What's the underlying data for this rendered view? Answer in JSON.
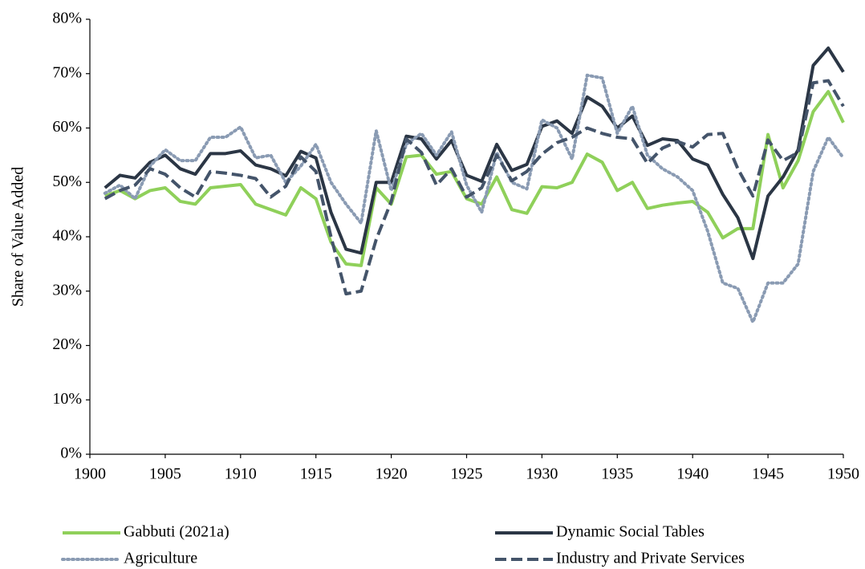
{
  "chart_data": {
    "type": "line",
    "y_label": "Share of  Value Added",
    "x": [
      1901,
      1902,
      1903,
      1904,
      1905,
      1906,
      1907,
      1908,
      1909,
      1910,
      1911,
      1912,
      1913,
      1914,
      1915,
      1916,
      1917,
      1918,
      1919,
      1920,
      1921,
      1922,
      1923,
      1924,
      1925,
      1926,
      1927,
      1928,
      1929,
      1930,
      1931,
      1932,
      1933,
      1934,
      1935,
      1936,
      1937,
      1938,
      1939,
      1940,
      1941,
      1942,
      1943,
      1944,
      1945,
      1946,
      1947,
      1948,
      1949,
      1950
    ],
    "xlim": [
      1900,
      1950
    ],
    "xticks": [
      1900,
      1905,
      1910,
      1915,
      1920,
      1925,
      1930,
      1935,
      1940,
      1945,
      1950
    ],
    "ylim": [
      0,
      80
    ],
    "yticks": [
      {
        "value": 0,
        "label": "0%"
      },
      {
        "value": 10,
        "label": "10%"
      },
      {
        "value": 20,
        "label": "20%"
      },
      {
        "value": 30,
        "label": "30%"
      },
      {
        "value": 40,
        "label": "40%"
      },
      {
        "value": 50,
        "label": "50%"
      },
      {
        "value": 60,
        "label": "60%"
      },
      {
        "value": 70,
        "label": "70%"
      },
      {
        "value": 80,
        "label": "80%"
      }
    ],
    "grid": false,
    "legend": "bottom",
    "series": [
      {
        "name": "Gabbuti (2021a)",
        "color": "#8fd05a",
        "style": "solid",
        "values": [
          47.5,
          48.5,
          47,
          48.5,
          49,
          46.5,
          46,
          49,
          49.3,
          49.6,
          46,
          45,
          44,
          49,
          47,
          39,
          35,
          34.7,
          49,
          46,
          54.7,
          55,
          51.5,
          52,
          47,
          46,
          51,
          45,
          44.3,
          49.2,
          49,
          50,
          55.2,
          53.7,
          48.5,
          50,
          45.2,
          45.8,
          46.2,
          46.5,
          44.5,
          39.8,
          41.5,
          41.5,
          58.8,
          49,
          54,
          63,
          66.7,
          61
        ]
      },
      {
        "name": "Dynamic Social Tables",
        "color": "#2b3645",
        "style": "solid",
        "values": [
          49,
          51.3,
          50.8,
          53.7,
          55,
          52.5,
          51.5,
          55.3,
          55.3,
          55.8,
          53.2,
          52.5,
          51.2,
          55.7,
          54.5,
          44.5,
          37.7,
          37,
          50,
          50,
          58.5,
          58,
          54.3,
          57.7,
          51.3,
          50.2,
          57,
          52.2,
          53.3,
          60.3,
          61.3,
          59,
          65.7,
          64,
          60,
          62.2,
          56.8,
          58,
          57.7,
          54.3,
          53.2,
          47.8,
          43.5,
          36,
          47.5,
          51,
          56,
          71.5,
          74.7,
          70.3
        ]
      },
      {
        "name": "Agriculture",
        "color": "#8a9bb3",
        "style": "dotted",
        "values": [
          48,
          49.5,
          47,
          53,
          56,
          54,
          54,
          58.3,
          58.3,
          60.2,
          54.5,
          55,
          50,
          53,
          57,
          50,
          46,
          42.5,
          59.5,
          48.5,
          57,
          59,
          55,
          59.3,
          49.5,
          44.5,
          55.5,
          50,
          48.8,
          61.5,
          60,
          54.3,
          69.7,
          69.2,
          59,
          64,
          55,
          52.5,
          51,
          48.5,
          41,
          31.5,
          30.5,
          24.3,
          31.5,
          31.5,
          35,
          52,
          58.3,
          54.5
        ]
      },
      {
        "name": "Industry and Private Services",
        "color": "#44546a",
        "style": "dashed",
        "values": [
          47,
          48.5,
          49.5,
          52.5,
          51.5,
          49,
          47.3,
          52,
          51.7,
          51.3,
          50.7,
          47.3,
          49.3,
          54.7,
          52,
          40,
          29.5,
          30,
          39.5,
          46.5,
          58,
          55.5,
          49.5,
          52.5,
          47.3,
          49,
          55,
          50.3,
          52,
          55.2,
          57.3,
          58.3,
          60,
          59,
          58.3,
          58,
          53.5,
          56.3,
          57.5,
          56.5,
          58.8,
          59,
          52.5,
          47.5,
          57.8,
          54,
          55.5,
          68.3,
          68.7,
          64
        ]
      }
    ]
  }
}
